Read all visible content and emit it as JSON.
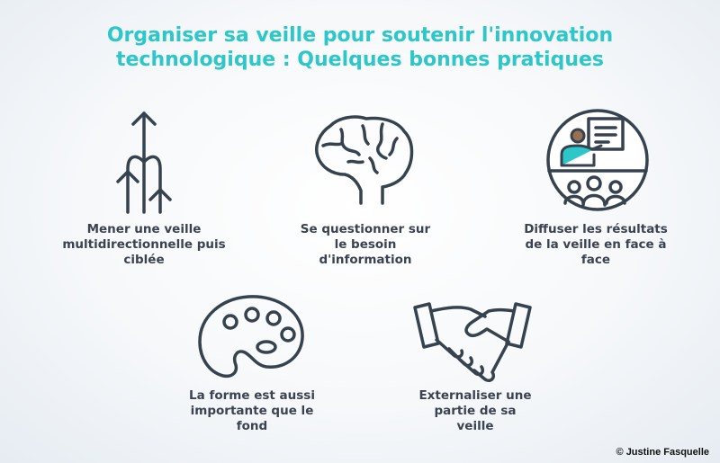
{
  "title": {
    "line1": "Organiser sa veille pour soutenir l'innovation",
    "line2": "technologique : Quelques bonnes pratiques",
    "color": "#2ec7c9"
  },
  "practices": [
    {
      "icon": "branching-arrows-icon",
      "lines": [
        "Mener une veille",
        "multidirectionnelle puis",
        "ciblée"
      ]
    },
    {
      "icon": "brain-icon",
      "lines": [
        "Se questionner sur",
        "le besoin",
        "d'information"
      ]
    },
    {
      "icon": "presentation-icon",
      "lines": [
        "Diffuser les résultats",
        "de la veille en face à",
        "face"
      ]
    },
    {
      "icon": "palette-icon",
      "lines": [
        "La forme est aussi",
        "importante que le",
        "fond"
      ]
    },
    {
      "icon": "handshake-icon",
      "lines": [
        "Externaliser une",
        "partie de sa",
        "veille"
      ]
    }
  ],
  "credit": "© Justine Fasquelle",
  "colors": {
    "icon_stroke": "#37424f",
    "text": "#3b4250",
    "skin": "#9a7150",
    "shirt": "#2ec7c9"
  }
}
